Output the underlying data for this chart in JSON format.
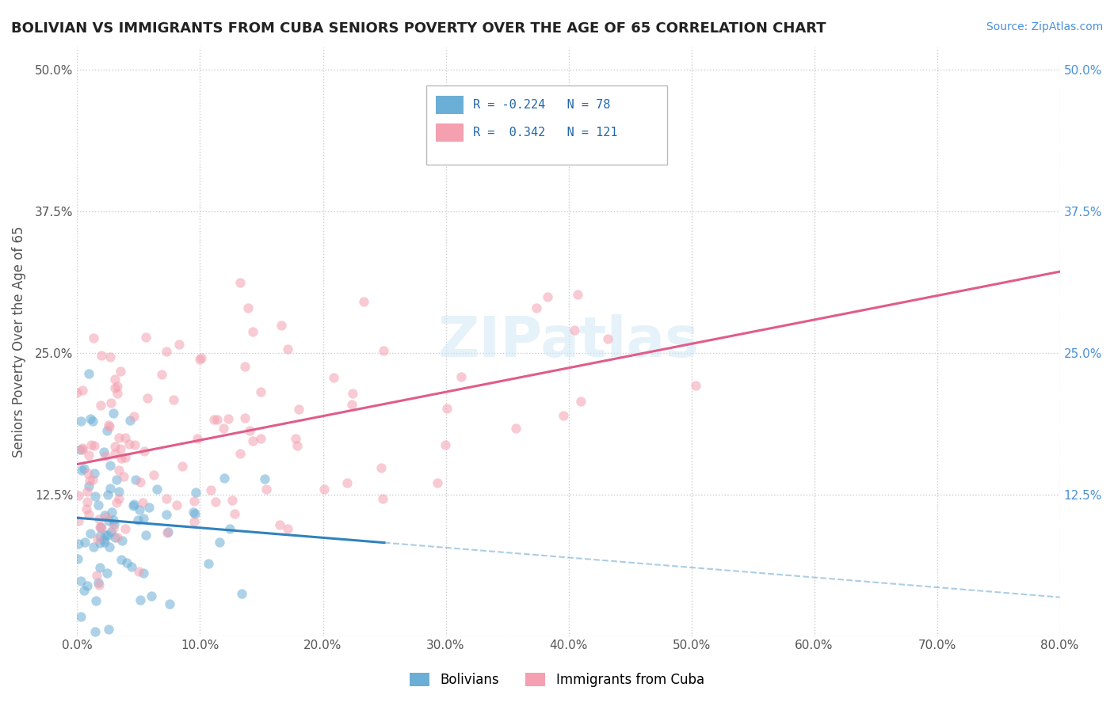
{
  "title": "BOLIVIAN VS IMMIGRANTS FROM CUBA SENIORS POVERTY OVER THE AGE OF 65 CORRELATION CHART",
  "source_text": "Source: ZipAtlas.com",
  "ylabel": "Seniors Poverty Over the Age of 65",
  "xmin": 0.0,
  "xmax": 0.8,
  "ymin": 0.0,
  "ymax": 0.52,
  "bolivian_color": "#6baed6",
  "cuba_color": "#f4a0b0",
  "bolivian_R": -0.224,
  "bolivian_N": 78,
  "cuba_R": 0.342,
  "cuba_N": 121,
  "bolivian_line_color": "#3182bd",
  "cuba_line_color": "#e05c8a",
  "watermark_text": "ZIPatlas",
  "legend_R_color": "#2166ac",
  "background_color": "#ffffff",
  "grid_color": "#cccccc",
  "title_color": "#222222"
}
